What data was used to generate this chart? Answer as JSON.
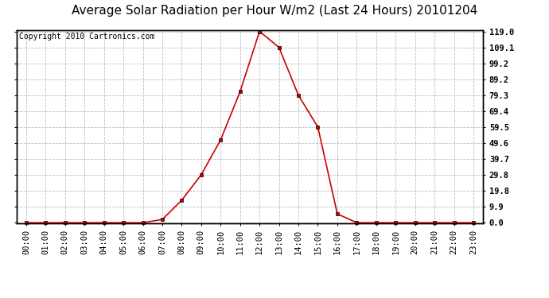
{
  "title": "Average Solar Radiation per Hour W/m2 (Last 24 Hours) 20101204",
  "copyright": "Copyright 2010 Cartronics.com",
  "hours": [
    0,
    1,
    2,
    3,
    4,
    5,
    6,
    7,
    8,
    9,
    10,
    11,
    12,
    13,
    14,
    15,
    16,
    17,
    18,
    19,
    20,
    21,
    22,
    23
  ],
  "x_labels": [
    "00:00",
    "01:00",
    "02:00",
    "03:00",
    "04:00",
    "05:00",
    "06:00",
    "07:00",
    "08:00",
    "09:00",
    "10:00",
    "11:00",
    "12:00",
    "13:00",
    "14:00",
    "15:00",
    "16:00",
    "17:00",
    "18:00",
    "19:00",
    "20:00",
    "21:00",
    "22:00",
    "23:00"
  ],
  "values": [
    0,
    0,
    0,
    0,
    0,
    0,
    0,
    2.0,
    14.0,
    29.8,
    51.5,
    81.5,
    119.0,
    109.1,
    79.3,
    59.5,
    5.5,
    0,
    0,
    0,
    0,
    0,
    0,
    0
  ],
  "line_color": "#cc0000",
  "marker": "s",
  "marker_size": 3,
  "background_color": "#ffffff",
  "plot_bg_color": "#ffffff",
  "grid_color": "#bbbbbb",
  "y_ticks": [
    0.0,
    9.9,
    19.8,
    29.8,
    39.7,
    49.6,
    59.5,
    69.4,
    79.3,
    89.2,
    99.2,
    109.1,
    119.0
  ],
  "y_min": 0.0,
  "y_max": 119.0,
  "title_fontsize": 11,
  "copyright_fontsize": 7,
  "tick_fontsize": 7.5,
  "figwidth": 6.9,
  "figheight": 3.75,
  "dpi": 100
}
